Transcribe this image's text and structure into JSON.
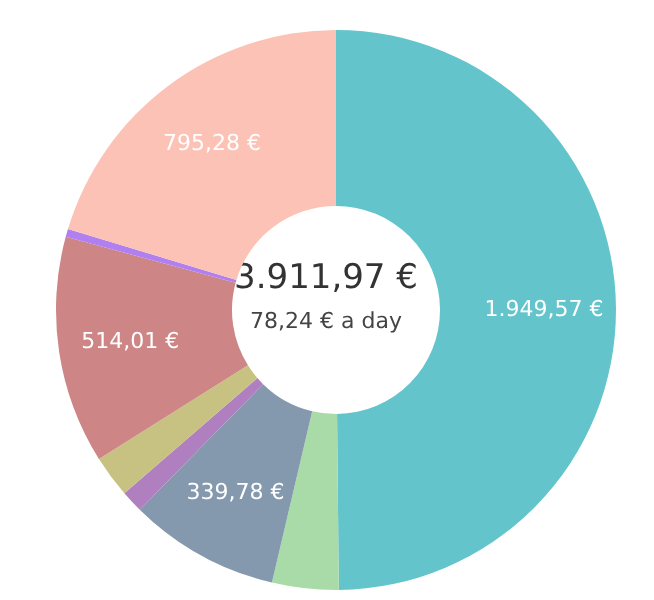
{
  "chart_data": {
    "type": "donut",
    "title": "3.911,97 €",
    "subtitle": "78,24 € a day",
    "categories": [
      null,
      null,
      null,
      null,
      null,
      null,
      null,
      null
    ],
    "values": [
      1949.57,
      150,
      339.78,
      50,
      95,
      514.01,
      18,
      795.28
    ],
    "value_labels": [
      "1.949,57 €",
      null,
      "339,78 €",
      null,
      null,
      "514,01 €",
      null,
      "795,28 €"
    ],
    "colors": [
      "#63c5cb",
      "#a8dba8",
      "#8499ad",
      "#b07fc0",
      "#c8c282",
      "#cd8585",
      "#b07ff0",
      "#fcc2b5"
    ],
    "legend": false
  }
}
